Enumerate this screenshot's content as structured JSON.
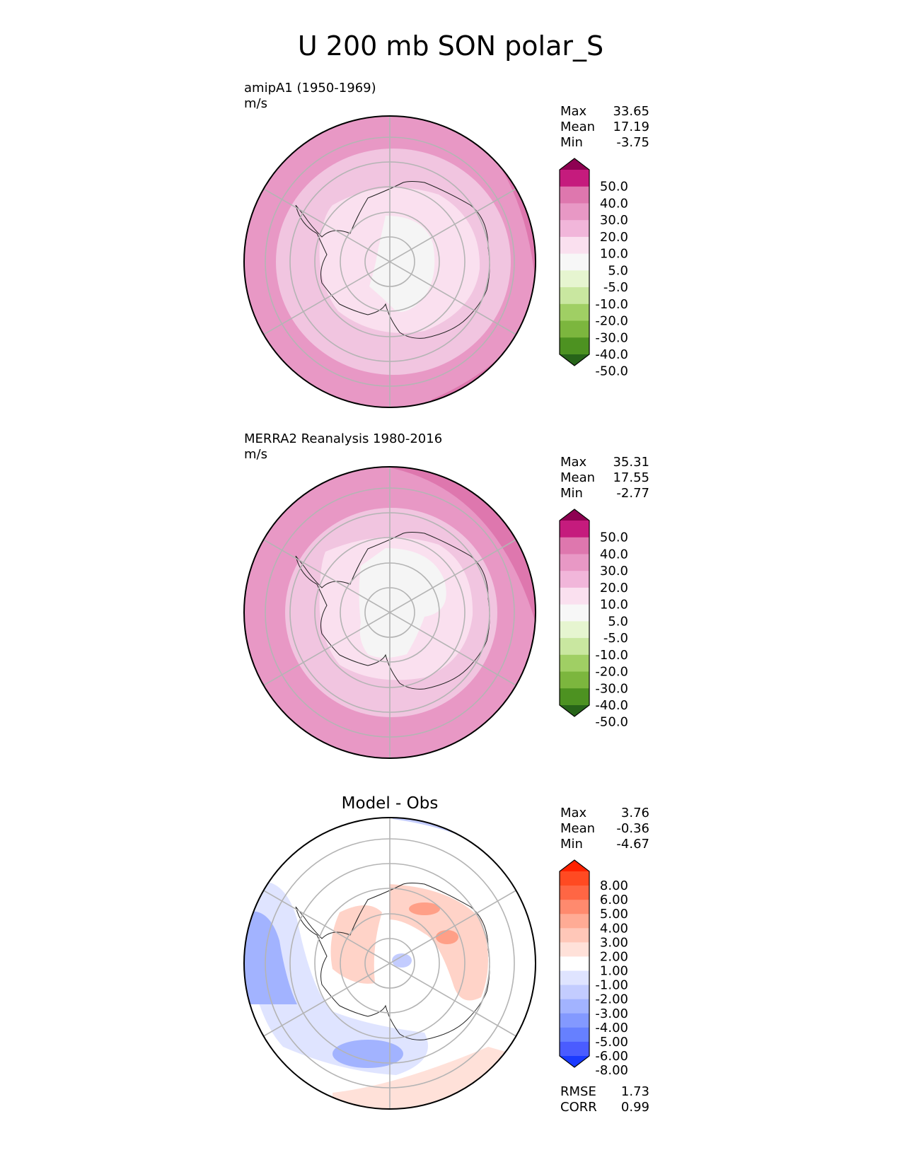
{
  "title": "U 200 mb SON polar_S",
  "chart_data": [
    {
      "type": "polar-contour",
      "panel": "model",
      "heading": "",
      "label": "amipA1 (1950-1969)",
      "units": "m/s",
      "stats": {
        "max_label": "Max",
        "max": "33.65",
        "mean_label": "Mean",
        "mean": "17.19",
        "min_label": "Min",
        "min": "-3.75"
      },
      "levels": [
        "50.0",
        "40.0",
        "30.0",
        "20.0",
        "10.0",
        "5.0",
        "-5.0",
        "-10.0",
        "-20.0",
        "-30.0",
        "-40.0",
        "-50.0"
      ],
      "colors": [
        "#8e0152",
        "#c51b7d",
        "#de77ae",
        "#e898c5",
        "#f1b6da",
        "#fae0ef",
        "#f7f7f7",
        "#e6f5d0",
        "#c9e7a0",
        "#a0cf64",
        "#7cb63e",
        "#4d9221",
        "#276419"
      ],
      "rings": [
        {
          "r_frac": 1.0,
          "color": "#e898c5"
        },
        {
          "r_frac": 0.8,
          "color": "#f1c5e0"
        },
        {
          "r_frac": 0.45,
          "color": "#fae0ef"
        },
        {
          "r_frac": 0.22,
          "color": "#f5f5f5"
        }
      ]
    },
    {
      "type": "polar-contour",
      "panel": "obs",
      "heading": "",
      "label": "MERRA2 Reanalysis 1980-2016",
      "units": "m/s",
      "stats": {
        "max_label": "Max",
        "max": "35.31",
        "mean_label": "Mean",
        "mean": "17.55",
        "min_label": "Min",
        "min": "-2.77"
      },
      "levels": [
        "50.0",
        "40.0",
        "30.0",
        "20.0",
        "10.0",
        "5.0",
        "-5.0",
        "-10.0",
        "-20.0",
        "-30.0",
        "-40.0",
        "-50.0"
      ],
      "colors": [
        "#8e0152",
        "#c51b7d",
        "#de77ae",
        "#e898c5",
        "#f1b6da",
        "#fae0ef",
        "#f7f7f7",
        "#e6f5d0",
        "#c9e7a0",
        "#a0cf64",
        "#7cb63e",
        "#4d9221",
        "#276419"
      ],
      "rings": [
        {
          "r_frac": 1.0,
          "color": "#e898c5"
        },
        {
          "r_frac": 0.72,
          "color": "#f1c5e0"
        },
        {
          "r_frac": 0.5,
          "color": "#fae0ef"
        },
        {
          "r_frac": 0.28,
          "color": "#f5f5f5"
        }
      ]
    },
    {
      "type": "polar-contour",
      "panel": "diff",
      "heading": "Model - Obs",
      "label": "",
      "units": "",
      "stats": {
        "max_label": "Max",
        "max": "3.76",
        "mean_label": "Mean",
        "mean": "-0.36",
        "min_label": "Min",
        "min": "-4.67"
      },
      "levels": [
        "8.00",
        "6.00",
        "5.00",
        "4.00",
        "3.00",
        "2.00",
        "1.00",
        "-1.00",
        "-2.00",
        "-3.00",
        "-4.00",
        "-5.00",
        "-6.00",
        "-8.00"
      ],
      "colors": [
        "#ff2200",
        "#ff4a22",
        "#ff6644",
        "#ff8a6e",
        "#ffab95",
        "#ffc7b8",
        "#ffe1d9",
        "#ffffff",
        "#dfe4ff",
        "#c3ccff",
        "#a2b3ff",
        "#8399ff",
        "#6680ff",
        "#4a5cff",
        "#1a3aff"
      ],
      "rmse_label": "RMSE",
      "rmse": "1.73",
      "corr_label": "CORR",
      "corr": "0.99"
    }
  ]
}
